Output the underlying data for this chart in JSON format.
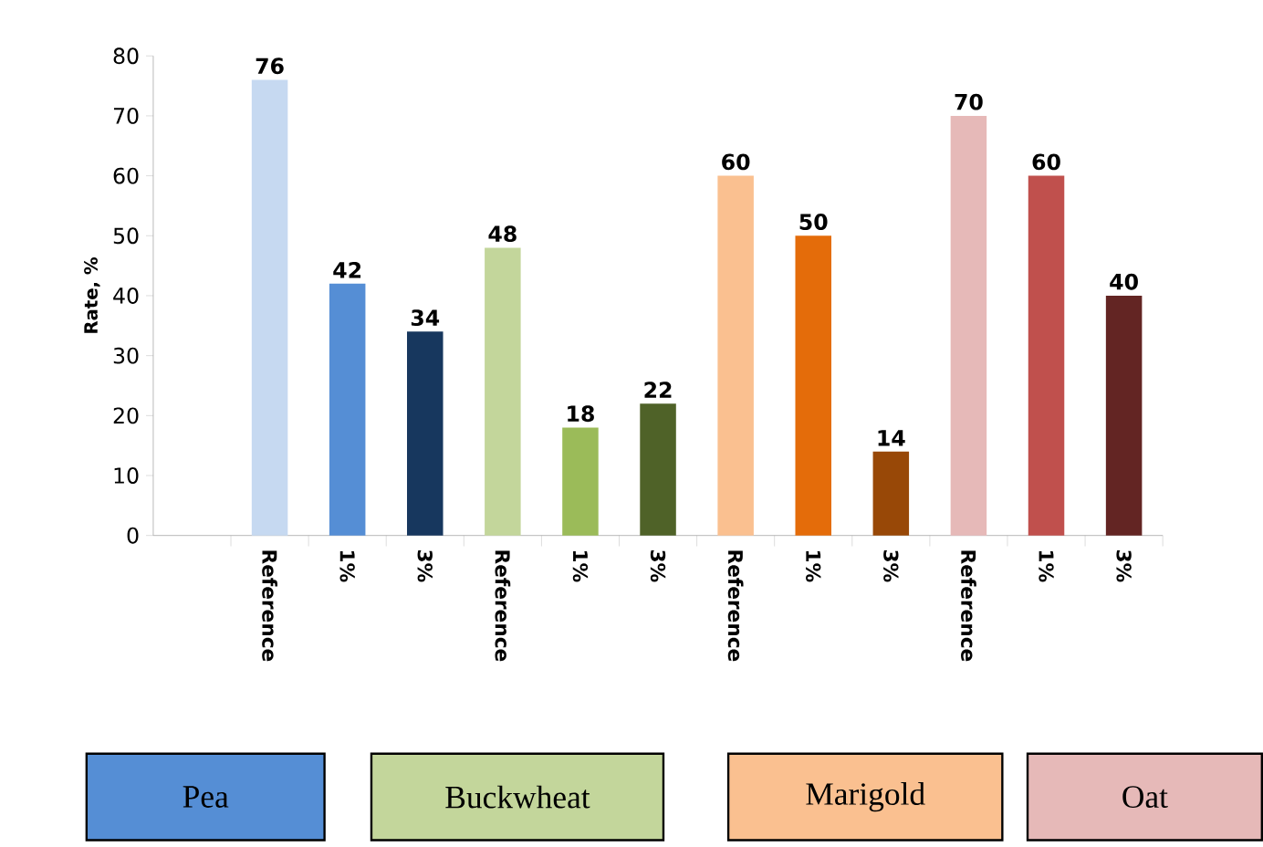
{
  "chart_data": {
    "type": "bar",
    "ylabel": "Rate, %",
    "categories": [
      null,
      "Reference",
      "1%",
      "3%",
      "Reference",
      "1%",
      "3%",
      "Reference",
      "1%",
      "3%",
      "Reference",
      "1%",
      "3%"
    ],
    "series": [
      {
        "name": "Pea",
        "color": "#558ed5",
        "colors": [
          null,
          "#c6d9f1",
          "#558ed5",
          "#17375e",
          null,
          null,
          null,
          null,
          null,
          null,
          null,
          null,
          null
        ],
        "values": [
          null,
          76,
          42,
          34,
          null,
          null,
          null,
          null,
          null,
          null,
          null,
          null,
          null
        ]
      },
      {
        "name": "Buckwheat",
        "color": "#c3d69b",
        "colors": [
          null,
          null,
          null,
          null,
          "#c3d69b",
          "#9bbb59",
          "#4f6228",
          null,
          null,
          null,
          null,
          null,
          null
        ],
        "values": [
          null,
          null,
          null,
          null,
          48,
          18,
          22,
          null,
          null,
          null,
          null,
          null,
          null
        ]
      },
      {
        "name": "Marigold",
        "color": "#fac090",
        "colors": [
          null,
          null,
          null,
          null,
          null,
          null,
          null,
          "#fac090",
          "#e46c0a",
          "#984807",
          null,
          null,
          null
        ],
        "values": [
          null,
          null,
          null,
          null,
          null,
          null,
          null,
          60,
          50,
          14,
          null,
          null,
          null
        ]
      },
      {
        "name": "Oat",
        "color": "#e6b9b8",
        "colors": [
          null,
          null,
          null,
          null,
          null,
          null,
          null,
          null,
          null,
          null,
          "#e6b9b8",
          "#c0504d",
          "#632523"
        ],
        "values": [
          null,
          null,
          null,
          null,
          null,
          null,
          null,
          null,
          null,
          null,
          70,
          60,
          40
        ]
      }
    ],
    "ylim": [
      0,
      80
    ],
    "yticks": [
      0,
      10,
      20,
      30,
      40,
      50,
      60,
      70,
      80
    ],
    "data_labels": true,
    "legend": "bottom"
  }
}
